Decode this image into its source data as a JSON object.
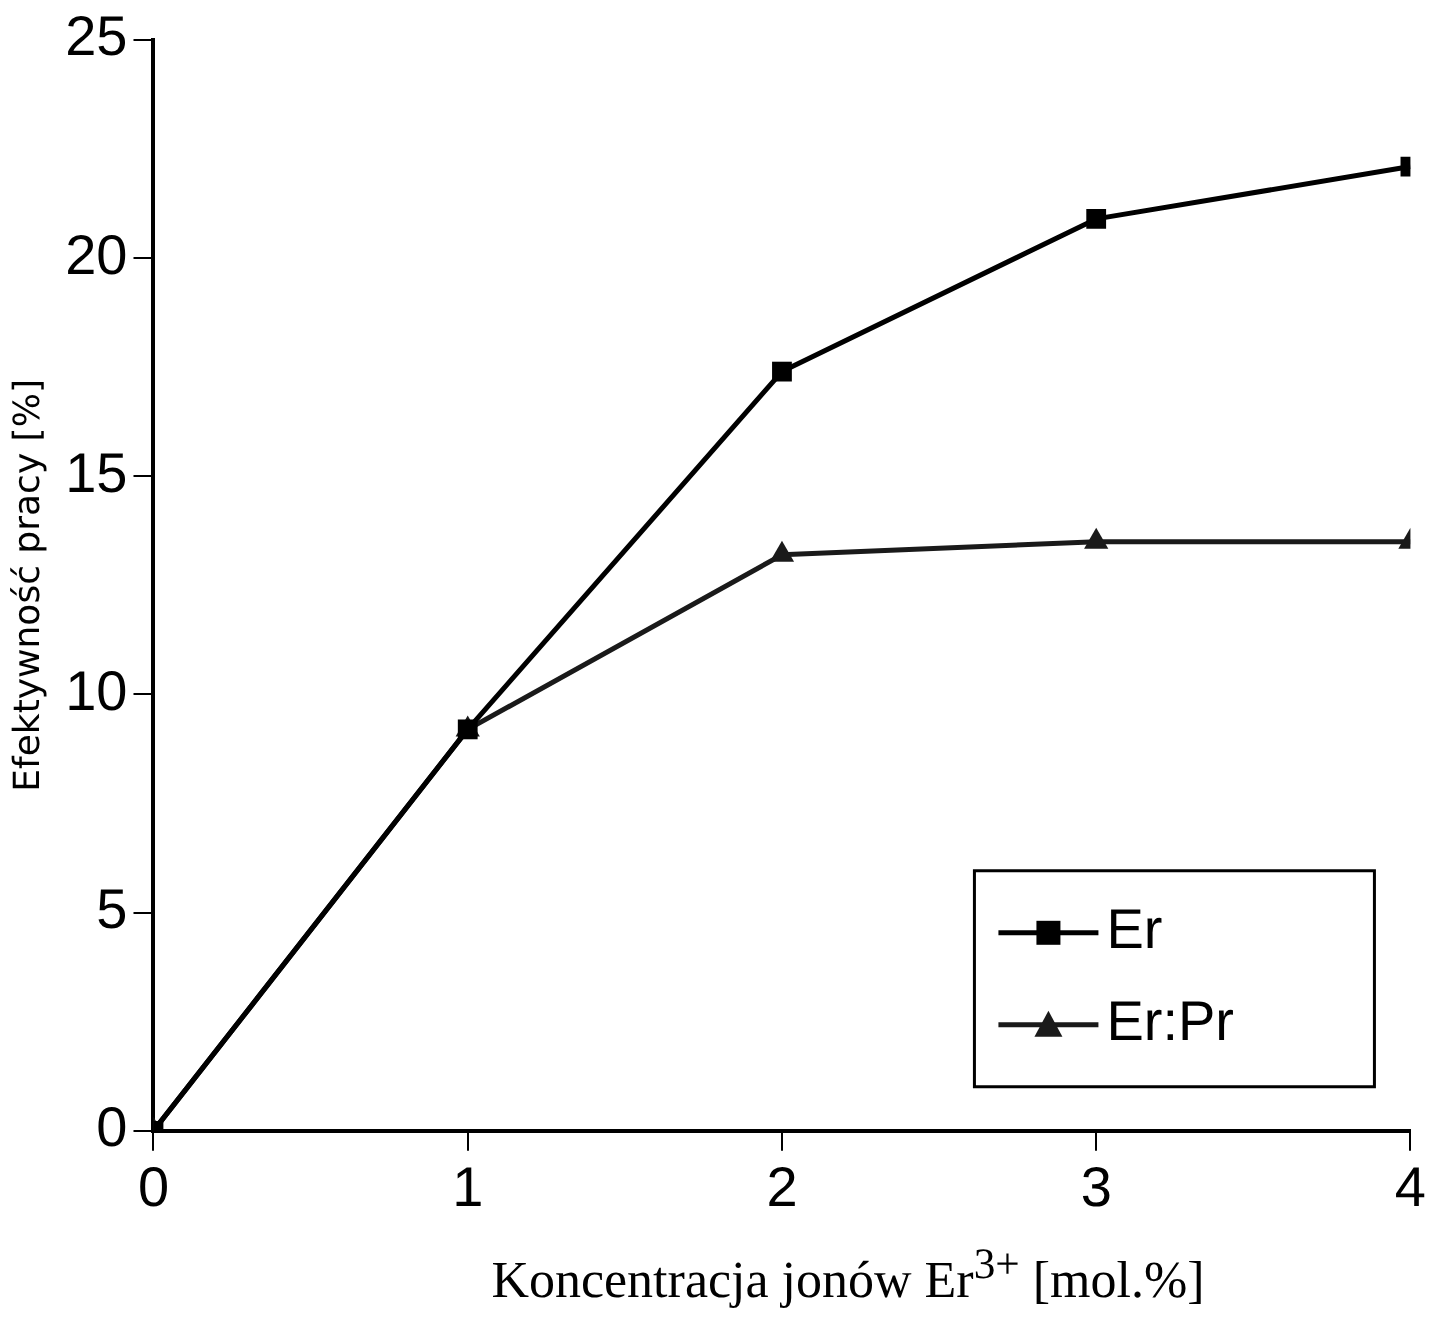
{
  "chart_data": {
    "type": "line",
    "xlabel": "Koncentracja jonów Er$^{3+}$ [mol.%]",
    "ylabel": "Efektywność pracy [%]",
    "x": [
      0,
      1,
      2,
      3,
      4
    ],
    "series": [
      {
        "name": "Er",
        "color": "#000000",
        "marker": "square",
        "values": [
          0,
          9.2,
          17.4,
          20.9,
          22.1
        ]
      },
      {
        "name": "Er:Pr",
        "color": "#1a1a1a",
        "marker": "triangle",
        "values": [
          0,
          9.2,
          13.2,
          13.5,
          13.5
        ]
      }
    ],
    "xlim": [
      0,
      4
    ],
    "xticks": [
      0,
      1,
      2,
      3,
      4
    ],
    "ylim": [
      0,
      25
    ],
    "yticks": [
      0,
      5,
      10,
      15,
      20,
      25
    ],
    "grid": false,
    "legend": "bottom right",
    "line_style": "solid"
  }
}
